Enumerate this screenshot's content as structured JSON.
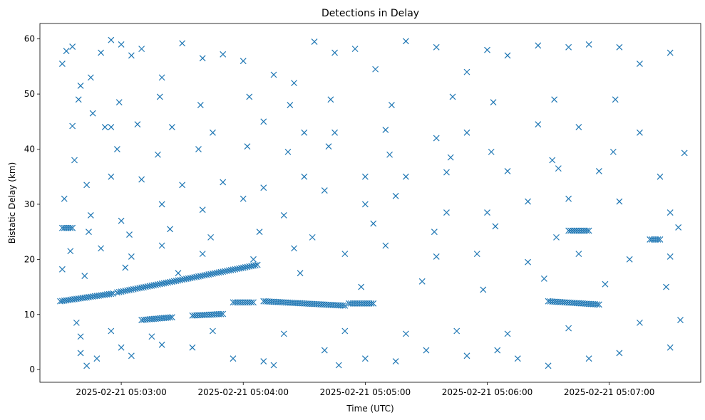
{
  "chart_data": {
    "type": "scatter",
    "title": "Detections in Delay",
    "xlabel": "Time (UTC)",
    "ylabel": "Bistatic Delay (km)",
    "x_ticks": [
      "2025-02-21 05:03:00",
      "2025-02-21 05:04:00",
      "2025-02-21 05:05:00",
      "2025-02-21 05:06:00",
      "2025-02-21 05:07:00"
    ],
    "y_ticks": [
      "0",
      "10",
      "20",
      "30",
      "40",
      "50",
      "60"
    ],
    "xlim": [
      "2025-02-21 05:02:20",
      "2025-02-21 05:07:45"
    ],
    "ylim": [
      -2.3,
      62.8
    ],
    "marker": "x",
    "marker_color": "#1f77b4",
    "grid": false,
    "legend": "none",
    "track_segments": [
      {
        "x_start": "2025-02-21 05:02:30",
        "y_start": 12.4,
        "x_end": "2025-02-21 05:02:56",
        "y_end": 13.8
      },
      {
        "x_start": "2025-02-21 05:02:58",
        "y_start": 14.0,
        "x_end": "2025-02-21 05:04:07",
        "y_end": 19.0
      },
      {
        "x_start": "2025-02-21 05:04:10",
        "y_start": 12.4,
        "x_end": "2025-02-21 05:04:50",
        "y_end": 11.6
      },
      {
        "x_start": "2025-02-21 05:04:52",
        "y_start": 12.0,
        "x_end": "2025-02-21 05:05:04",
        "y_end": 12.0
      },
      {
        "x_start": "2025-02-21 05:06:30",
        "y_start": 12.4,
        "x_end": "2025-02-21 05:06:55",
        "y_end": 11.8
      },
      {
        "x_start": "2025-02-21 05:03:10",
        "y_start": 9.0,
        "x_end": "2025-02-21 05:03:25",
        "y_end": 9.5
      },
      {
        "x_start": "2025-02-21 05:03:35",
        "y_start": 9.8,
        "x_end": "2025-02-21 05:03:50",
        "y_end": 10.1
      },
      {
        "x_start": "2025-02-21 05:03:55",
        "y_start": 12.2,
        "x_end": "2025-02-21 05:04:05",
        "y_end": 12.2
      },
      {
        "x_start": "2025-02-21 05:06:40",
        "y_start": 25.2,
        "x_end": "2025-02-21 05:06:50",
        "y_end": 25.2
      },
      {
        "x_start": "2025-02-21 05:02:31",
        "y_start": 25.7,
        "x_end": "2025-02-21 05:02:36",
        "y_end": 25.7
      },
      {
        "x_start": "2025-02-21 05:07:20",
        "y_start": 23.6,
        "x_end": "2025-02-21 05:07:25",
        "y_end": 23.6
      }
    ],
    "series": [
      {
        "values": [
          [
            "2025-02-21 05:02:31",
            55.5
          ],
          [
            "2025-02-21 05:02:33",
            57.8
          ],
          [
            "2025-02-21 05:02:36",
            58.6
          ],
          [
            "2025-02-21 05:02:40",
            51.5
          ],
          [
            "2025-02-21 05:02:45",
            53.0
          ],
          [
            "2025-02-21 05:02:50",
            57.5
          ],
          [
            "2025-02-21 05:02:55",
            59.8
          ],
          [
            "2025-02-21 05:03:00",
            59.0
          ],
          [
            "2025-02-21 05:03:05",
            57.0
          ],
          [
            "2025-02-21 05:03:10",
            58.2
          ],
          [
            "2025-02-21 05:03:20",
            53.0
          ],
          [
            "2025-02-21 05:03:30",
            59.2
          ],
          [
            "2025-02-21 05:03:40",
            56.5
          ],
          [
            "2025-02-21 05:03:50",
            57.2
          ],
          [
            "2025-02-21 05:04:00",
            56.0
          ],
          [
            "2025-02-21 05:04:15",
            53.5
          ],
          [
            "2025-02-21 05:04:25",
            52.0
          ],
          [
            "2025-02-21 05:04:35",
            59.5
          ],
          [
            "2025-02-21 05:04:45",
            57.5
          ],
          [
            "2025-02-21 05:04:55",
            58.2
          ],
          [
            "2025-02-21 05:05:05",
            54.5
          ],
          [
            "2025-02-21 05:05:20",
            59.6
          ],
          [
            "2025-02-21 05:05:35",
            58.5
          ],
          [
            "2025-02-21 05:05:50",
            54.0
          ],
          [
            "2025-02-21 05:06:00",
            58.0
          ],
          [
            "2025-02-21 05:06:10",
            57.0
          ],
          [
            "2025-02-21 05:06:25",
            58.8
          ],
          [
            "2025-02-21 05:06:40",
            58.5
          ],
          [
            "2025-02-21 05:06:50",
            59.0
          ],
          [
            "2025-02-21 05:07:05",
            58.5
          ],
          [
            "2025-02-21 05:07:15",
            55.5
          ],
          [
            "2025-02-21 05:07:30",
            57.5
          ],
          [
            "2025-02-21 05:02:36",
            44.2
          ],
          [
            "2025-02-21 05:02:46",
            46.5
          ],
          [
            "2025-02-21 05:02:52",
            44.0
          ],
          [
            "2025-02-21 05:02:55",
            44.0
          ],
          [
            "2025-02-21 05:03:08",
            44.5
          ],
          [
            "2025-02-21 05:03:25",
            44.0
          ],
          [
            "2025-02-21 05:03:45",
            43.0
          ],
          [
            "2025-02-21 05:04:10",
            45.0
          ],
          [
            "2025-02-21 05:04:30",
            43.0
          ],
          [
            "2025-02-21 05:04:45",
            43.0
          ],
          [
            "2025-02-21 05:05:10",
            43.5
          ],
          [
            "2025-02-21 05:05:35",
            42.0
          ],
          [
            "2025-02-21 05:05:50",
            43.0
          ],
          [
            "2025-02-21 05:06:25",
            44.5
          ],
          [
            "2025-02-21 05:06:45",
            44.0
          ],
          [
            "2025-02-21 05:07:15",
            43.0
          ],
          [
            "2025-02-21 05:02:43",
            33.5
          ],
          [
            "2025-02-21 05:02:55",
            35.0
          ],
          [
            "2025-02-21 05:03:10",
            34.5
          ],
          [
            "2025-02-21 05:03:30",
            33.5
          ],
          [
            "2025-02-21 05:03:50",
            34.0
          ],
          [
            "2025-02-21 05:04:10",
            33.0
          ],
          [
            "2025-02-21 05:04:30",
            35.0
          ],
          [
            "2025-02-21 05:05:00",
            35.0
          ],
          [
            "2025-02-21 05:05:20",
            35.0
          ],
          [
            "2025-02-21 05:05:40",
            35.8
          ],
          [
            "2025-02-21 05:06:10",
            36.0
          ],
          [
            "2025-02-21 05:06:35",
            36.5
          ],
          [
            "2025-02-21 05:06:55",
            36.0
          ],
          [
            "2025-02-21 05:07:25",
            35.0
          ],
          [
            "2025-02-21 05:02:32",
            31.0
          ],
          [
            "2025-02-21 05:02:45",
            28.0
          ],
          [
            "2025-02-21 05:03:00",
            27.0
          ],
          [
            "2025-02-21 05:03:20",
            30.0
          ],
          [
            "2025-02-21 05:03:40",
            29.0
          ],
          [
            "2025-02-21 05:04:00",
            31.0
          ],
          [
            "2025-02-21 05:04:20",
            28.0
          ],
          [
            "2025-02-21 05:04:40",
            32.5
          ],
          [
            "2025-02-21 05:05:00",
            30.0
          ],
          [
            "2025-02-21 05:05:15",
            31.5
          ],
          [
            "2025-02-21 05:05:40",
            28.5
          ],
          [
            "2025-02-21 05:06:00",
            28.5
          ],
          [
            "2025-02-21 05:06:20",
            30.5
          ],
          [
            "2025-02-21 05:06:40",
            31.0
          ],
          [
            "2025-02-21 05:07:05",
            30.5
          ],
          [
            "2025-02-21 05:07:30",
            28.5
          ],
          [
            "2025-02-21 05:02:35",
            21.5
          ],
          [
            "2025-02-21 05:02:50",
            22.0
          ],
          [
            "2025-02-21 05:03:05",
            20.5
          ],
          [
            "2025-02-21 05:03:20",
            22.5
          ],
          [
            "2025-02-21 05:03:40",
            21.0
          ],
          [
            "2025-02-21 05:04:05",
            20.0
          ],
          [
            "2025-02-21 05:04:25",
            22.0
          ],
          [
            "2025-02-21 05:04:50",
            21.0
          ],
          [
            "2025-02-21 05:05:10",
            22.5
          ],
          [
            "2025-02-21 05:05:35",
            20.5
          ],
          [
            "2025-02-21 05:05:55",
            21.0
          ],
          [
            "2025-02-21 05:06:20",
            19.5
          ],
          [
            "2025-02-21 05:06:45",
            21.0
          ],
          [
            "2025-02-21 05:07:10",
            20.0
          ],
          [
            "2025-02-21 05:07:30",
            20.5
          ],
          [
            "2025-02-21 05:02:31",
            18.2
          ],
          [
            "2025-02-21 05:02:38",
            8.5
          ],
          [
            "2025-02-21 05:02:40",
            3.0
          ],
          [
            "2025-02-21 05:02:43",
            0.7
          ],
          [
            "2025-02-21 05:02:48",
            2.0
          ],
          [
            "2025-02-21 05:03:00",
            4.0
          ],
          [
            "2025-02-21 05:03:05",
            2.5
          ],
          [
            "2025-02-21 05:03:20",
            4.5
          ],
          [
            "2025-02-21 05:03:35",
            4.0
          ],
          [
            "2025-02-21 05:03:55",
            2.0
          ],
          [
            "2025-02-21 05:04:10",
            1.5
          ],
          [
            "2025-02-21 05:04:15",
            0.8
          ],
          [
            "2025-02-21 05:04:40",
            3.5
          ],
          [
            "2025-02-21 05:04:47",
            0.8
          ],
          [
            "2025-02-21 05:05:00",
            2.0
          ],
          [
            "2025-02-21 05:05:15",
            1.5
          ],
          [
            "2025-02-21 05:05:30",
            3.5
          ],
          [
            "2025-02-21 05:05:50",
            2.5
          ],
          [
            "2025-02-21 05:06:05",
            3.5
          ],
          [
            "2025-02-21 05:06:15",
            2.0
          ],
          [
            "2025-02-21 05:06:30",
            0.7
          ],
          [
            "2025-02-21 05:06:50",
            2.0
          ],
          [
            "2025-02-21 05:07:05",
            3.0
          ],
          [
            "2025-02-21 05:07:30",
            4.0
          ],
          [
            "2025-02-21 05:02:40",
            6.0
          ],
          [
            "2025-02-21 05:02:55",
            7.0
          ],
          [
            "2025-02-21 05:03:15",
            6.0
          ],
          [
            "2025-02-21 05:03:45",
            7.0
          ],
          [
            "2025-02-21 05:04:20",
            6.5
          ],
          [
            "2025-02-21 05:04:50",
            7.0
          ],
          [
            "2025-02-21 05:05:20",
            6.5
          ],
          [
            "2025-02-21 05:05:45",
            7.0
          ],
          [
            "2025-02-21 05:06:10",
            6.5
          ],
          [
            "2025-02-21 05:06:40",
            7.5
          ],
          [
            "2025-02-21 05:07:15",
            8.5
          ],
          [
            "2025-02-21 05:07:35",
            9.0
          ],
          [
            "2025-02-21 05:02:37",
            38.0
          ],
          [
            "2025-02-21 05:02:58",
            40.0
          ],
          [
            "2025-02-21 05:03:18",
            39.0
          ],
          [
            "2025-02-21 05:03:38",
            40.0
          ],
          [
            "2025-02-21 05:04:02",
            40.5
          ],
          [
            "2025-02-21 05:04:22",
            39.5
          ],
          [
            "2025-02-21 05:04:42",
            40.5
          ],
          [
            "2025-02-21 05:05:12",
            39.0
          ],
          [
            "2025-02-21 05:05:42",
            38.5
          ],
          [
            "2025-02-21 05:06:02",
            39.5
          ],
          [
            "2025-02-21 05:06:32",
            38.0
          ],
          [
            "2025-02-21 05:07:02",
            39.5
          ],
          [
            "2025-02-21 05:07:37",
            39.3
          ],
          [
            "2025-02-21 05:02:39",
            49.0
          ],
          [
            "2025-02-21 05:02:59",
            48.5
          ],
          [
            "2025-02-21 05:03:19",
            49.5
          ],
          [
            "2025-02-21 05:03:39",
            48.0
          ],
          [
            "2025-02-21 05:04:03",
            49.5
          ],
          [
            "2025-02-21 05:04:23",
            48.0
          ],
          [
            "2025-02-21 05:04:43",
            49.0
          ],
          [
            "2025-02-21 05:05:13",
            48.0
          ],
          [
            "2025-02-21 05:05:43",
            49.5
          ],
          [
            "2025-02-21 05:06:03",
            48.5
          ],
          [
            "2025-02-21 05:06:33",
            49.0
          ],
          [
            "2025-02-21 05:07:03",
            49.0
          ],
          [
            "2025-02-21 05:02:42",
            17.0
          ],
          [
            "2025-02-21 05:03:02",
            18.5
          ],
          [
            "2025-02-21 05:03:28",
            17.5
          ],
          [
            "2025-02-21 05:04:28",
            17.5
          ],
          [
            "2025-02-21 05:04:58",
            15.0
          ],
          [
            "2025-02-21 05:05:28",
            16.0
          ],
          [
            "2025-02-21 05:05:58",
            14.5
          ],
          [
            "2025-02-21 05:06:28",
            16.5
          ],
          [
            "2025-02-21 05:06:58",
            15.5
          ],
          [
            "2025-02-21 05:07:28",
            15.0
          ],
          [
            "2025-02-21 05:02:44",
            25.0
          ],
          [
            "2025-02-21 05:03:04",
            24.5
          ],
          [
            "2025-02-21 05:03:24",
            25.5
          ],
          [
            "2025-02-21 05:03:44",
            24.0
          ],
          [
            "2025-02-21 05:04:08",
            25.0
          ],
          [
            "2025-02-21 05:04:34",
            24.0
          ],
          [
            "2025-02-21 05:05:04",
            26.5
          ],
          [
            "2025-02-21 05:05:34",
            25.0
          ],
          [
            "2025-02-21 05:06:04",
            26.0
          ],
          [
            "2025-02-21 05:06:34",
            24.0
          ],
          [
            "2025-02-21 05:07:34",
            25.8
          ]
        ]
      }
    ]
  }
}
